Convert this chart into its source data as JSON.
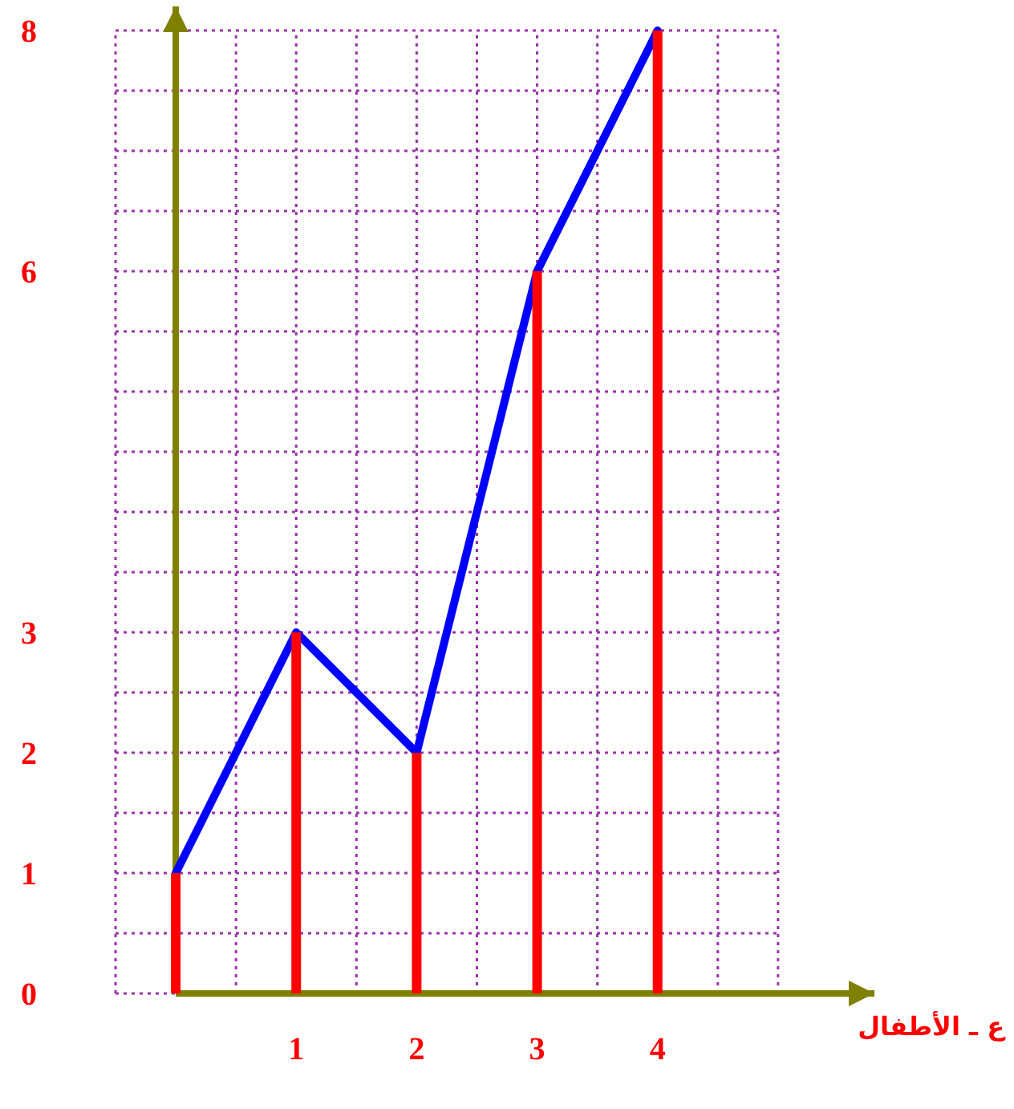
{
  "chart_data": {
    "type": "line",
    "xlabel": "ع ـ الأطفال",
    "x": [
      0,
      1,
      2,
      3,
      4
    ],
    "series": [
      {
        "type": "bar",
        "color": "#ff0000",
        "values": [
          1,
          3,
          2,
          6,
          8
        ]
      },
      {
        "color": "#0000ff",
        "values": [
          1,
          3,
          2,
          6,
          8
        ]
      }
    ],
    "xlim": [
      -0.5,
      5.8
    ],
    "ylim": [
      0,
      8.2
    ],
    "xticks": [
      1,
      2,
      3,
      4
    ],
    "yticks": [
      0,
      1,
      2,
      3,
      6,
      8
    ],
    "grid": true,
    "marker": "none",
    "line_style": "solid",
    "ref_lines": [
      {
        "axis": "x",
        "value": 0,
        "color": "#808000"
      }
    ]
  }
}
